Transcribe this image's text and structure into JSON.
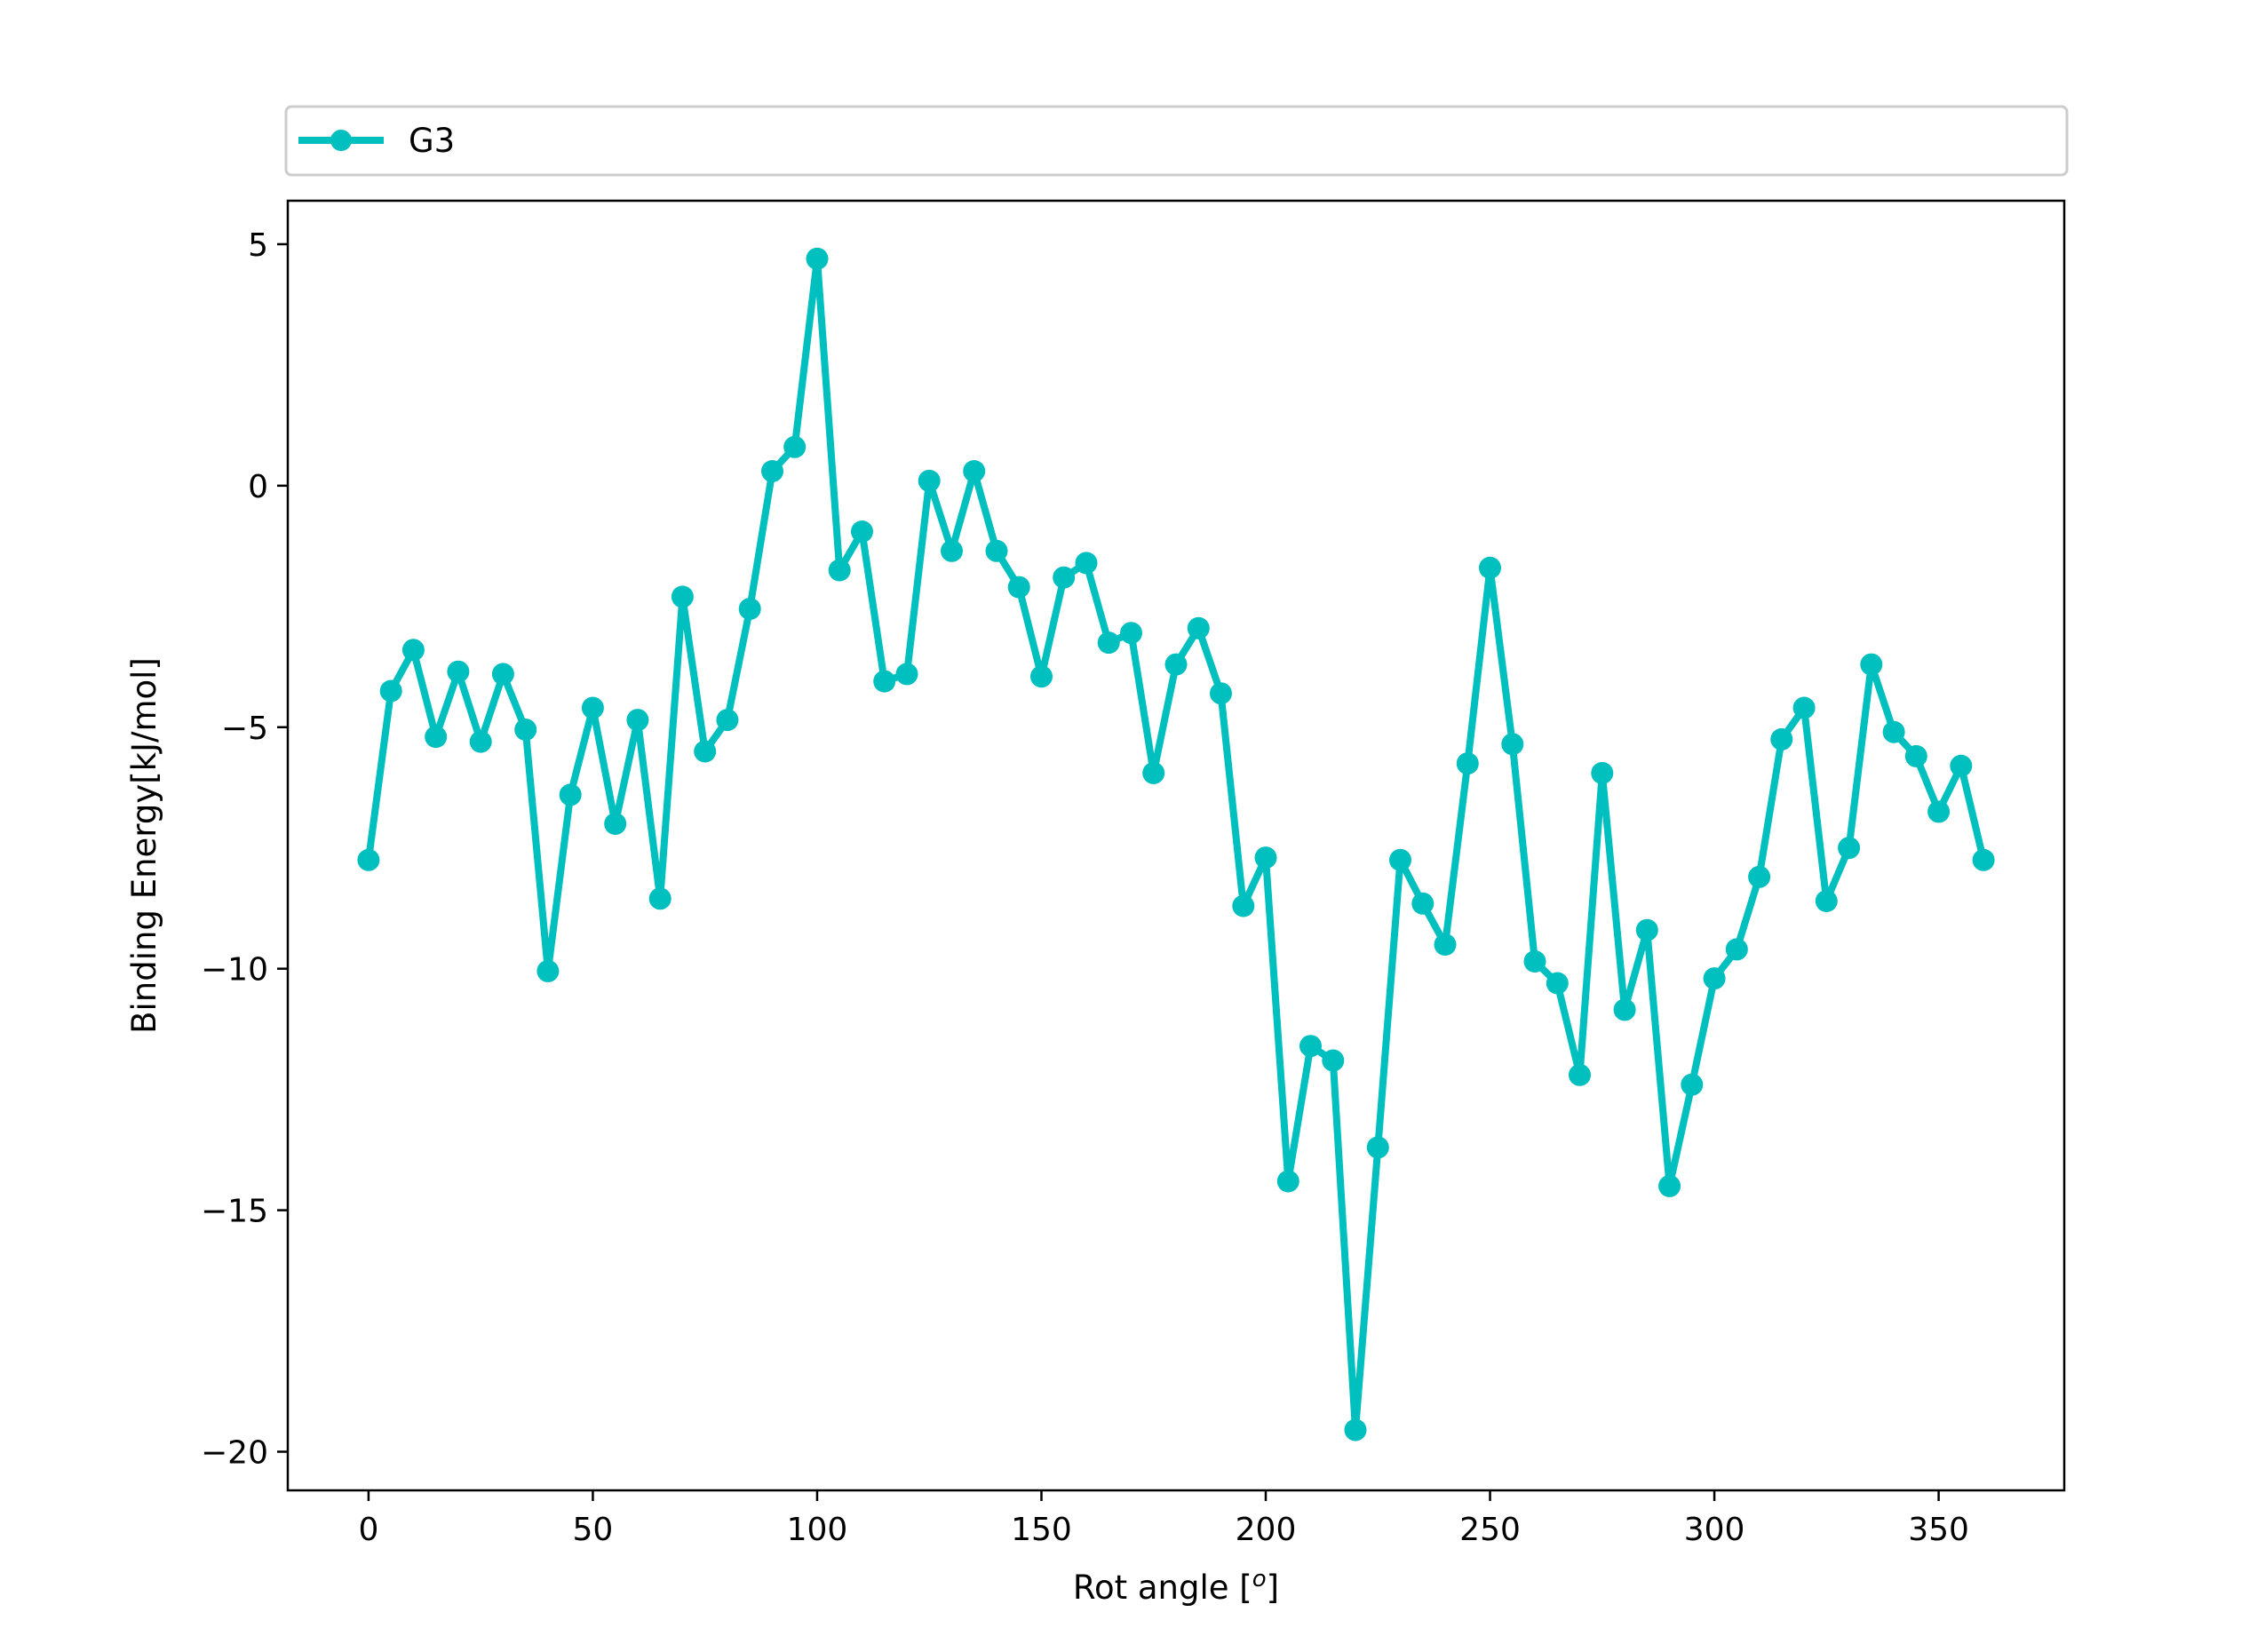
{
  "chart_data": {
    "type": "line",
    "title": "",
    "xlabel_prefix": "Rot angle [",
    "xlabel_sup": "o",
    "xlabel_suffix": "]",
    "ylabel": "Binding Energy[kJ/mol]",
    "xlim": [
      -18,
      378
    ],
    "ylim": [
      -20.8,
      5.9
    ],
    "xticks": [
      0,
      50,
      100,
      150,
      200,
      250,
      300,
      350
    ],
    "xtick_labels": [
      "0",
      "50",
      "100",
      "150",
      "200",
      "250",
      "300",
      "350"
    ],
    "yticks": [
      5,
      0,
      -5,
      -10,
      -15,
      -20
    ],
    "ytick_labels": [
      "5",
      "0",
      "−5",
      "−10",
      "−15",
      "−20"
    ],
    "grid": false,
    "legend_position": "top, spanning width above plot",
    "series": [
      {
        "name": "G3",
        "color": "#00bfbf",
        "marker": "circle",
        "x": [
          0,
          5,
          10,
          15,
          20,
          25,
          30,
          35,
          40,
          45,
          50,
          55,
          60,
          65,
          70,
          75,
          80,
          85,
          90,
          95,
          100,
          105,
          110,
          115,
          120,
          125,
          130,
          135,
          140,
          145,
          150,
          155,
          160,
          165,
          170,
          175,
          180,
          185,
          190,
          195,
          200,
          205,
          210,
          215,
          220,
          225,
          230,
          235,
          240,
          245,
          250,
          255,
          260,
          265,
          270,
          275,
          280,
          285,
          290,
          295,
          300,
          305,
          310,
          315,
          320,
          325,
          330,
          335,
          340,
          345,
          350,
          355,
          360
        ],
        "y": [
          -7.75,
          -4.25,
          -3.4,
          -5.2,
          -3.85,
          -5.3,
          -3.9,
          -5.05,
          -10.05,
          -6.4,
          -4.6,
          -7.0,
          -4.85,
          -8.55,
          -2.3,
          -5.5,
          -4.85,
          -2.55,
          0.3,
          0.8,
          4.7,
          -1.75,
          -0.95,
          -4.05,
          -3.9,
          0.1,
          -1.35,
          0.3,
          -1.35,
          -2.1,
          -3.95,
          -1.9,
          -1.6,
          -3.25,
          -3.05,
          -5.95,
          -3.7,
          -2.95,
          -4.3,
          -8.7,
          -7.7,
          -14.4,
          -11.6,
          -11.9,
          -19.55,
          -13.7,
          -7.75,
          -8.65,
          -9.5,
          -5.75,
          -1.7,
          -5.35,
          -9.85,
          -10.3,
          -12.2,
          -5.95,
          -10.85,
          -9.2,
          -14.5,
          -12.4,
          -10.2,
          -9.6,
          -8.1,
          -5.25,
          -4.6,
          -8.6,
          -7.5,
          -3.7,
          -5.1,
          -5.6,
          -6.75,
          -5.8,
          -7.75
        ]
      }
    ]
  }
}
